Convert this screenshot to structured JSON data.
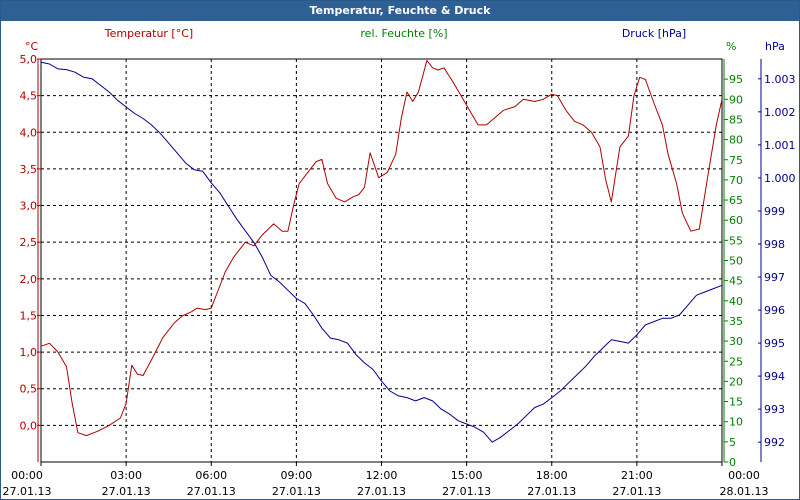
{
  "window": {
    "title": "Temperatur, Feuchte & Druck"
  },
  "colors": {
    "temperature": "#b00000",
    "humidity": "#008000",
    "pressure": "#00008c",
    "title_bar": "#2e6096",
    "grid": "#000000"
  },
  "chart_data": {
    "type": "line",
    "title": "Temperatur, Feuchte & Druck",
    "x_axis": {
      "range_hours": [
        0,
        24
      ],
      "ticks": [
        {
          "time": "00:00",
          "date": "27.01.13"
        },
        {
          "time": "03:00",
          "date": "27.01.13"
        },
        {
          "time": "06:00",
          "date": "27.01.13"
        },
        {
          "time": "09:00",
          "date": "27.01.13"
        },
        {
          "time": "12:00",
          "date": "27.01.13"
        },
        {
          "time": "15:00",
          "date": "27.01.13"
        },
        {
          "time": "18:00",
          "date": "27.01.13"
        },
        {
          "time": "21:00",
          "date": "27.01.13"
        },
        {
          "time": "00:00",
          "date": "28.01.13"
        }
      ]
    },
    "axes": {
      "temperature": {
        "unit": "°C",
        "label": "Temperatur [°C]",
        "min": -0.5,
        "max": 5.0,
        "step": 0.5,
        "tick_labels": [
          "5,0",
          "4,5",
          "4,0",
          "3,5",
          "3,0",
          "2,5",
          "2,0",
          "1,5",
          "1,0",
          "0,5",
          "0,0"
        ]
      },
      "humidity": {
        "unit": "%",
        "label": "rel. Feuchte [%]",
        "min": 0,
        "max": 100,
        "step": 5,
        "tick_labels": [
          "95",
          "90",
          "85",
          "80",
          "75",
          "70",
          "65",
          "60",
          "55",
          "50",
          "45",
          "40",
          "35",
          "30",
          "25",
          "20",
          "15",
          "10",
          "5",
          "0"
        ]
      },
      "pressure": {
        "unit": "hPa",
        "label": "Druck [hPa]",
        "min": 991.4,
        "max": 1003.6,
        "tick_labels": [
          "1.003",
          "1.002",
          "1.001",
          "1.000",
          "999",
          "998",
          "997",
          "996",
          "995",
          "994",
          "993",
          "992"
        ],
        "tick_values": [
          1003,
          1002,
          1001,
          1000,
          999,
          998,
          997,
          996,
          995,
          994,
          993,
          992
        ]
      }
    },
    "series": [
      {
        "name": "Temperatur",
        "axis": "temperature",
        "points": [
          [
            0.0,
            1.08
          ],
          [
            0.3,
            1.12
          ],
          [
            0.6,
            1.0
          ],
          [
            0.9,
            0.8
          ],
          [
            1.1,
            0.3
          ],
          [
            1.3,
            -0.1
          ],
          [
            1.6,
            -0.14
          ],
          [
            2.0,
            -0.08
          ],
          [
            2.4,
            0.0
          ],
          [
            2.8,
            0.1
          ],
          [
            3.0,
            0.3
          ],
          [
            3.2,
            0.82
          ],
          [
            3.4,
            0.7
          ],
          [
            3.6,
            0.68
          ],
          [
            3.9,
            0.9
          ],
          [
            4.3,
            1.2
          ],
          [
            4.7,
            1.4
          ],
          [
            5.0,
            1.5
          ],
          [
            5.3,
            1.55
          ],
          [
            5.5,
            1.6
          ],
          [
            5.8,
            1.58
          ],
          [
            6.0,
            1.6
          ],
          [
            6.2,
            1.8
          ],
          [
            6.5,
            2.1
          ],
          [
            6.8,
            2.3
          ],
          [
            7.2,
            2.5
          ],
          [
            7.5,
            2.45
          ],
          [
            7.8,
            2.6
          ],
          [
            8.2,
            2.75
          ],
          [
            8.5,
            2.65
          ],
          [
            8.7,
            2.65
          ],
          [
            8.9,
            3.0
          ],
          [
            9.1,
            3.3
          ],
          [
            9.4,
            3.45
          ],
          [
            9.7,
            3.6
          ],
          [
            9.9,
            3.63
          ],
          [
            10.1,
            3.3
          ],
          [
            10.4,
            3.1
          ],
          [
            10.7,
            3.05
          ],
          [
            11.0,
            3.12
          ],
          [
            11.2,
            3.15
          ],
          [
            11.4,
            3.25
          ],
          [
            11.6,
            3.72
          ],
          [
            11.9,
            3.38
          ],
          [
            12.2,
            3.45
          ],
          [
            12.5,
            3.7
          ],
          [
            12.7,
            4.2
          ],
          [
            12.9,
            4.55
          ],
          [
            13.1,
            4.42
          ],
          [
            13.3,
            4.55
          ],
          [
            13.6,
            4.98
          ],
          [
            13.8,
            4.88
          ],
          [
            14.0,
            4.85
          ],
          [
            14.2,
            4.88
          ],
          [
            14.5,
            4.7
          ],
          [
            14.8,
            4.5
          ],
          [
            15.1,
            4.3
          ],
          [
            15.4,
            4.1
          ],
          [
            15.7,
            4.1
          ],
          [
            16.0,
            4.2
          ],
          [
            16.3,
            4.3
          ],
          [
            16.7,
            4.35
          ],
          [
            17.0,
            4.45
          ],
          [
            17.4,
            4.42
          ],
          [
            17.7,
            4.45
          ],
          [
            18.0,
            4.52
          ],
          [
            18.2,
            4.5
          ],
          [
            18.5,
            4.3
          ],
          [
            18.8,
            4.15
          ],
          [
            19.1,
            4.1
          ],
          [
            19.4,
            4.0
          ],
          [
            19.7,
            3.8
          ],
          [
            19.9,
            3.35
          ],
          [
            20.1,
            3.05
          ],
          [
            20.4,
            3.8
          ],
          [
            20.7,
            3.95
          ],
          [
            20.9,
            4.5
          ],
          [
            21.1,
            4.75
          ],
          [
            21.3,
            4.72
          ],
          [
            21.6,
            4.4
          ],
          [
            21.9,
            4.1
          ],
          [
            22.1,
            3.7
          ],
          [
            22.4,
            3.3
          ],
          [
            22.6,
            2.9
          ],
          [
            22.9,
            2.65
          ],
          [
            23.2,
            2.68
          ],
          [
            23.5,
            3.4
          ],
          [
            23.8,
            4.1
          ],
          [
            24.0,
            4.45
          ]
        ]
      },
      {
        "name": "rel. Feuchte",
        "axis": "humidity",
        "points": []
      },
      {
        "name": "Druck",
        "axis": "pressure",
        "points": [
          [
            0.0,
            1003.5
          ],
          [
            0.3,
            1003.45
          ],
          [
            0.6,
            1003.3
          ],
          [
            0.9,
            1003.28
          ],
          [
            1.2,
            1003.2
          ],
          [
            1.5,
            1003.05
          ],
          [
            1.8,
            1003.0
          ],
          [
            2.1,
            1002.8
          ],
          [
            2.4,
            1002.6
          ],
          [
            2.7,
            1002.35
          ],
          [
            3.0,
            1002.15
          ],
          [
            3.3,
            1001.95
          ],
          [
            3.6,
            1001.8
          ],
          [
            3.9,
            1001.6
          ],
          [
            4.2,
            1001.35
          ],
          [
            4.5,
            1001.05
          ],
          [
            4.8,
            1000.75
          ],
          [
            5.1,
            1000.45
          ],
          [
            5.4,
            1000.25
          ],
          [
            5.7,
            1000.2
          ],
          [
            6.0,
            999.85
          ],
          [
            6.3,
            999.55
          ],
          [
            6.6,
            999.15
          ],
          [
            6.9,
            998.75
          ],
          [
            7.2,
            998.4
          ],
          [
            7.5,
            998.05
          ],
          [
            7.8,
            997.6
          ],
          [
            8.1,
            997.05
          ],
          [
            8.4,
            996.85
          ],
          [
            8.7,
            996.6
          ],
          [
            9.0,
            996.35
          ],
          [
            9.3,
            996.2
          ],
          [
            9.6,
            995.85
          ],
          [
            9.9,
            995.45
          ],
          [
            10.2,
            995.15
          ],
          [
            10.5,
            995.1
          ],
          [
            10.8,
            995.0
          ],
          [
            11.1,
            994.65
          ],
          [
            11.4,
            994.4
          ],
          [
            11.7,
            994.2
          ],
          [
            12.0,
            993.85
          ],
          [
            12.3,
            993.55
          ],
          [
            12.6,
            993.4
          ],
          [
            12.9,
            993.35
          ],
          [
            13.2,
            993.25
          ],
          [
            13.5,
            993.35
          ],
          [
            13.8,
            993.25
          ],
          [
            14.1,
            993.0
          ],
          [
            14.4,
            992.85
          ],
          [
            14.7,
            992.65
          ],
          [
            15.0,
            992.55
          ],
          [
            15.3,
            992.45
          ],
          [
            15.6,
            992.3
          ],
          [
            15.9,
            992.0
          ],
          [
            16.2,
            992.15
          ],
          [
            16.5,
            992.35
          ],
          [
            16.8,
            992.55
          ],
          [
            17.1,
            992.8
          ],
          [
            17.4,
            993.05
          ],
          [
            17.7,
            993.15
          ],
          [
            18.0,
            993.35
          ],
          [
            18.3,
            993.55
          ],
          [
            18.6,
            993.8
          ],
          [
            18.9,
            994.05
          ],
          [
            19.2,
            994.3
          ],
          [
            19.5,
            994.6
          ],
          [
            19.8,
            994.85
          ],
          [
            20.1,
            995.1
          ],
          [
            20.4,
            995.05
          ],
          [
            20.7,
            995.0
          ],
          [
            21.0,
            995.25
          ],
          [
            21.3,
            995.55
          ],
          [
            21.6,
            995.65
          ],
          [
            21.9,
            995.75
          ],
          [
            22.2,
            995.75
          ],
          [
            22.5,
            995.85
          ],
          [
            22.8,
            996.15
          ],
          [
            23.1,
            996.45
          ],
          [
            23.4,
            996.55
          ],
          [
            23.7,
            996.65
          ],
          [
            24.0,
            996.75
          ]
        ]
      }
    ]
  }
}
